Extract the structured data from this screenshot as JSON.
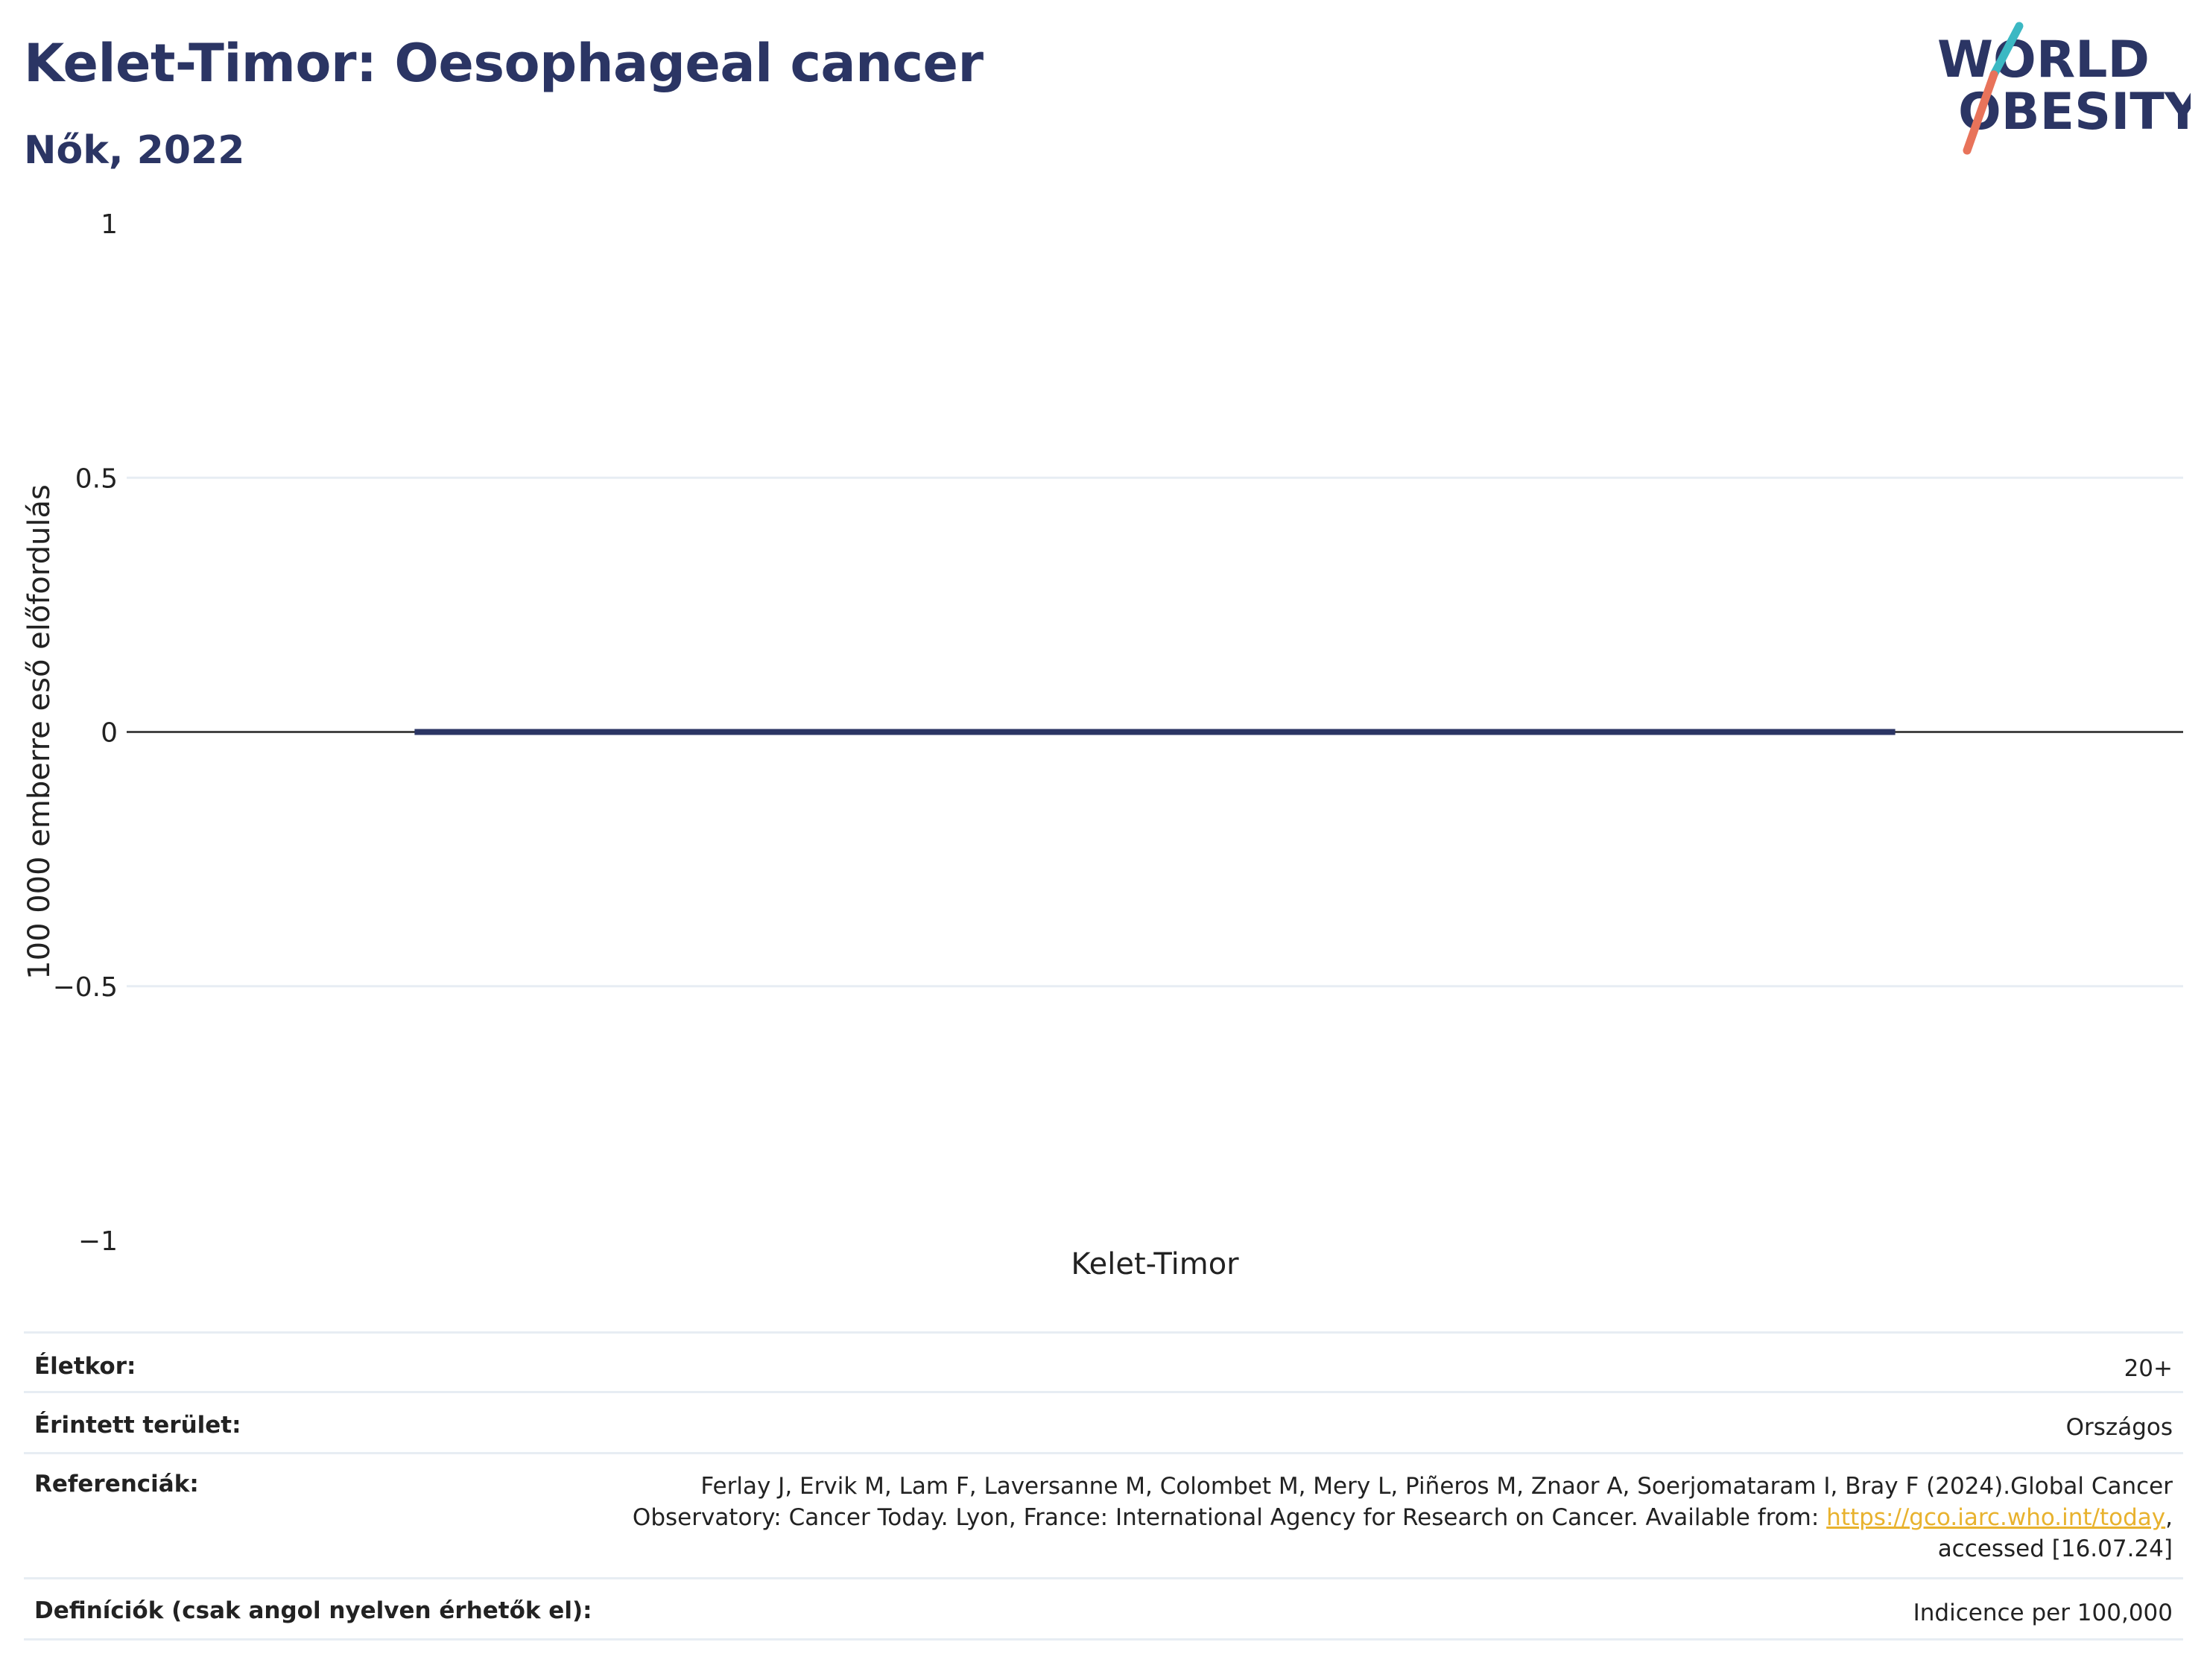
{
  "header": {
    "title": "Kelet-Timor: Oesophageal cancer",
    "subtitle": "Nők, 2022"
  },
  "logo": {
    "line1": "WORLD",
    "line2": "OBESITY",
    "colors": {
      "text": "#2b3564",
      "slash_teal": "#3bb8c3",
      "slash_coral": "#e8735a"
    }
  },
  "colors": {
    "primary": "#2b3564",
    "bar": "#2b3564",
    "grid": "#e7edf3",
    "zero_line": "#444444",
    "link": "#e8b22e"
  },
  "chart_data": {
    "type": "bar",
    "categories": [
      "Kelet-Timor"
    ],
    "values": [
      0
    ],
    "xlabel": "Kelet-Timor",
    "ylabel": "100 000 emberre eső előfordulás",
    "ylim": [
      -1,
      1
    ],
    "yticks": [
      1,
      0.5,
      0,
      -0.5,
      -1
    ],
    "ytick_labels": [
      "1",
      "0.5",
      "0",
      "−0.5",
      "−1"
    ],
    "grid": true
  },
  "info": {
    "age_label": "Életkor:",
    "age_value": "20+",
    "area_label": "Érintett terület:",
    "area_value": "Országos",
    "ref_label": "Referenciák:",
    "ref_text_1": "Ferlay J, Ervik M, Lam F, Laversanne M, Colombet M, Mery L, Piñeros M, Znaor A, Soerjomataram I, Bray F (2024).Global Cancer",
    "ref_text_2": "Observatory: Cancer Today. Lyon, France: International Agency for Research on Cancer. Available from: ",
    "ref_link": "https://gco.iarc.who.int/today",
    "ref_text_3": ",",
    "ref_text_4": "accessed [16.07.24]",
    "def_label": "Definíciók (csak angol nyelven érhetők el):",
    "def_value": "Indicence per 100,000"
  }
}
